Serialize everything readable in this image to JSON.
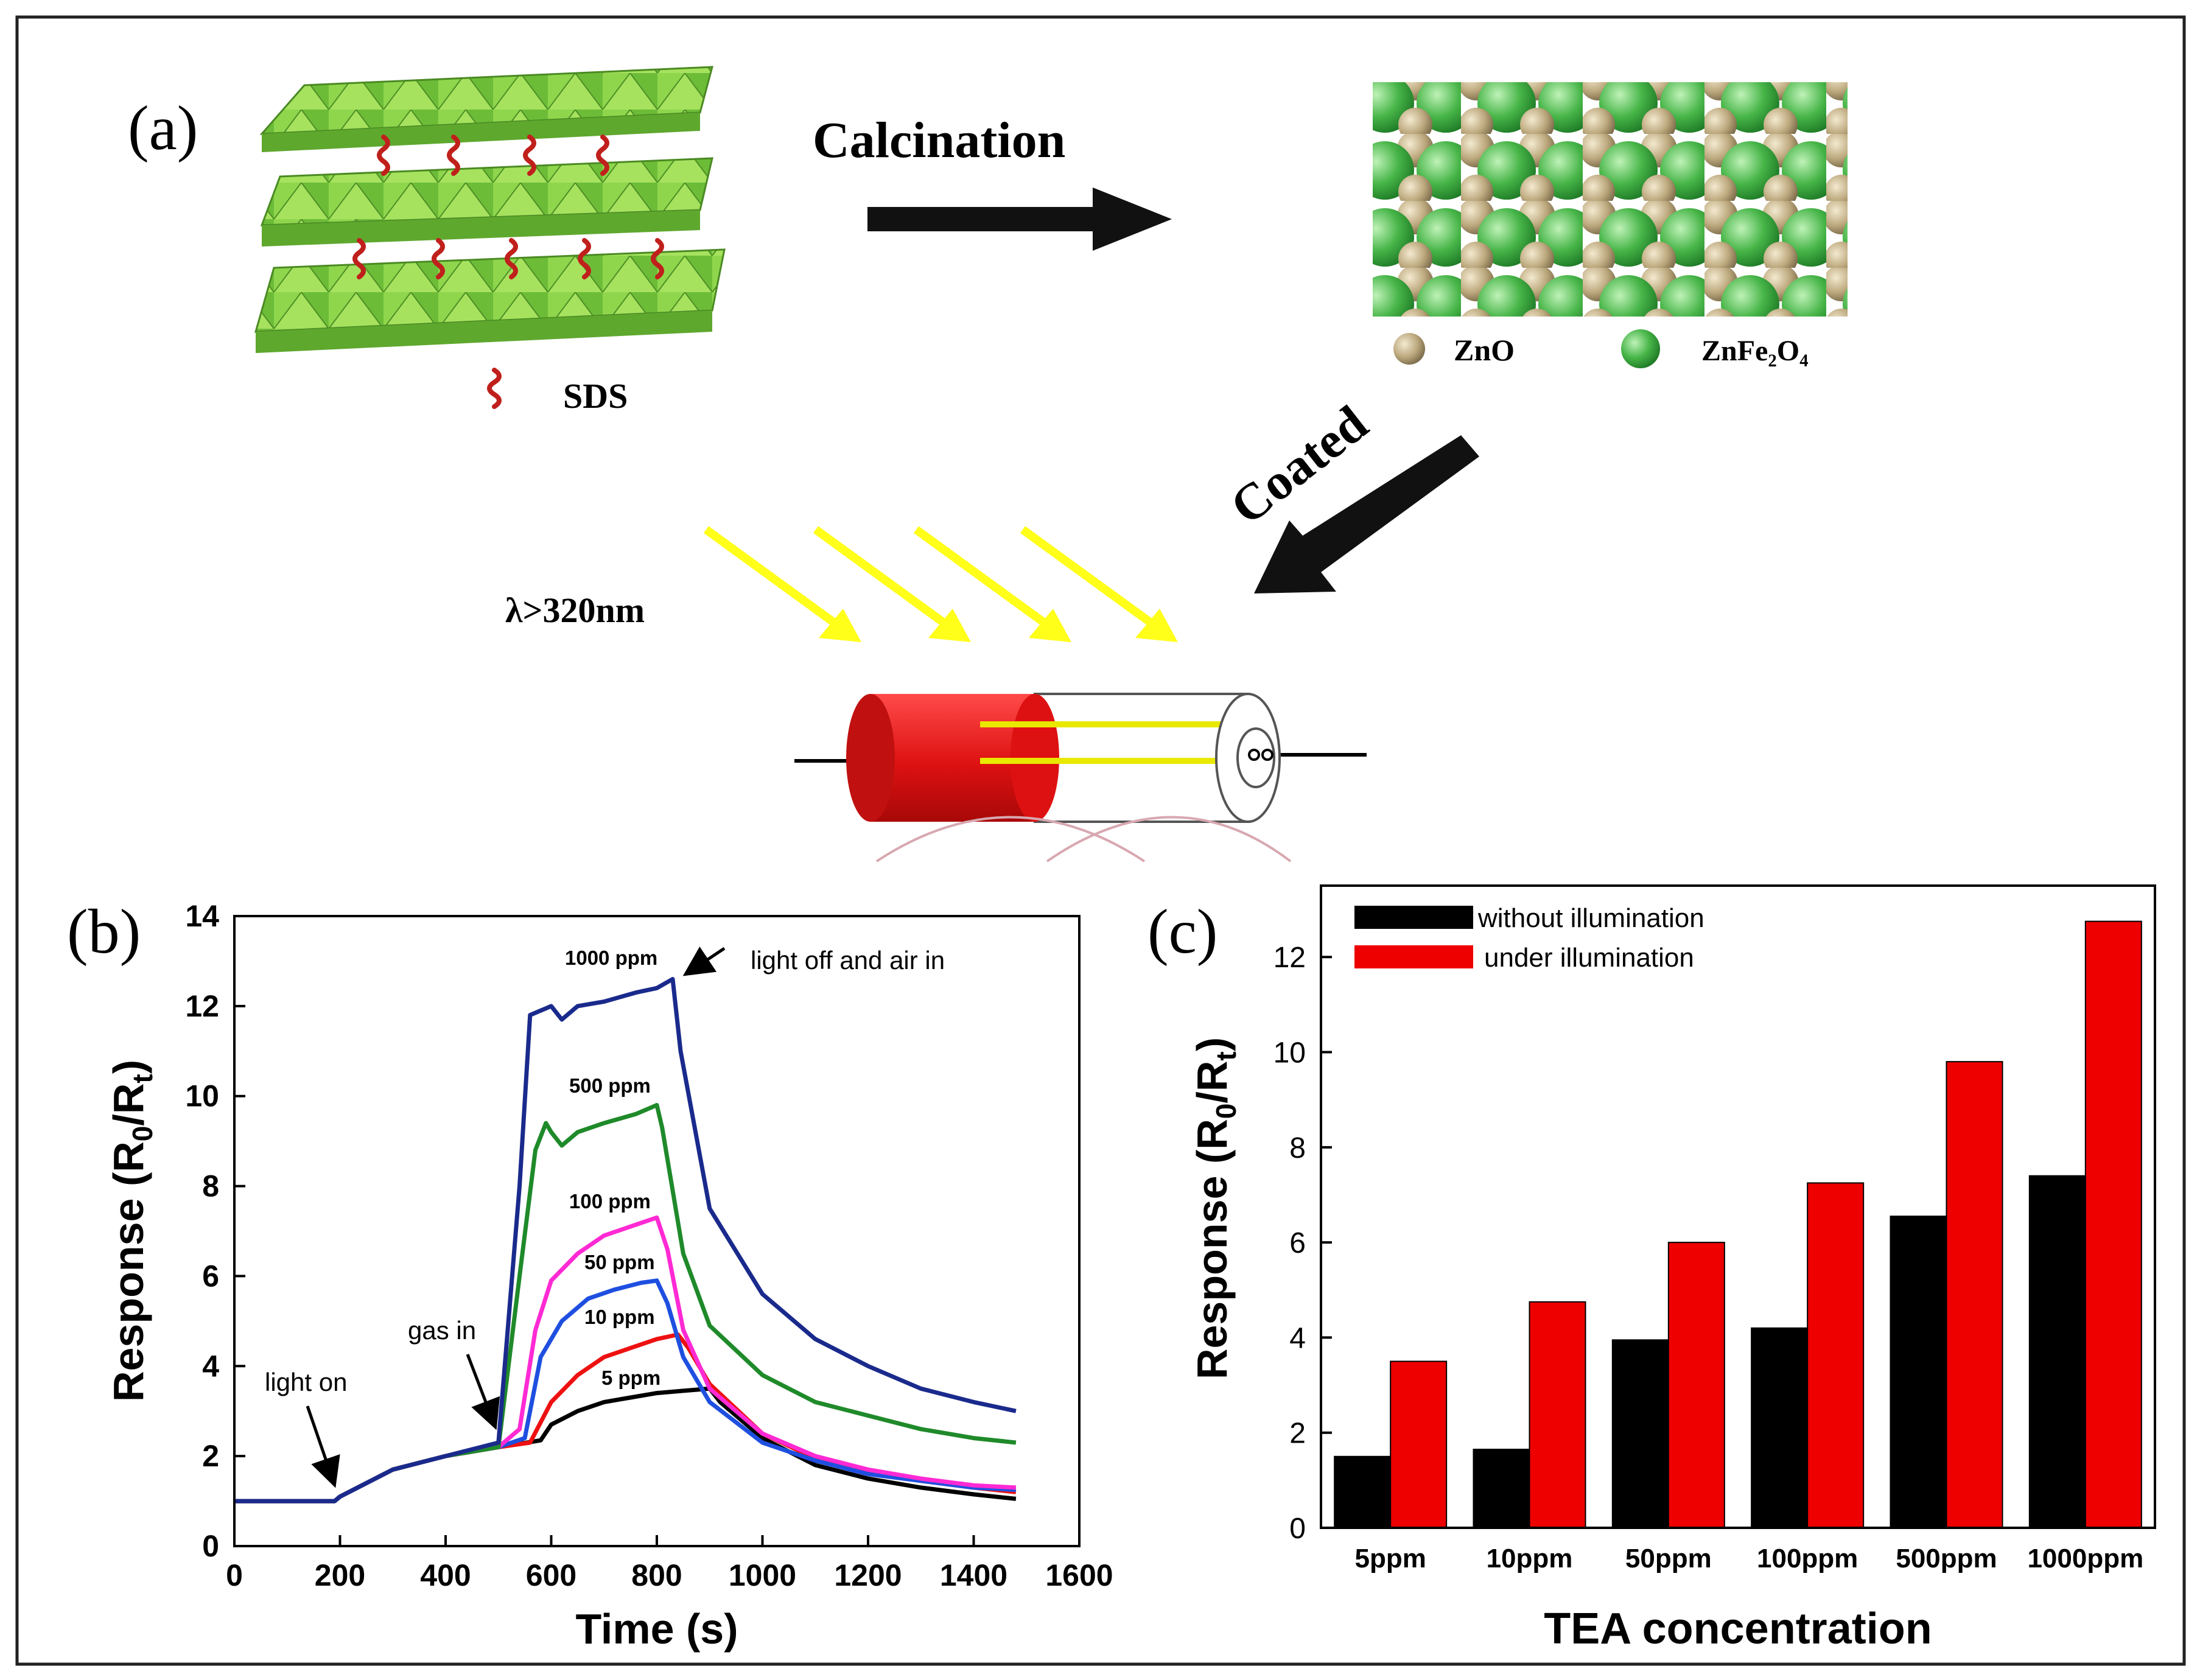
{
  "panel_a": {
    "label": "(a)",
    "calcination": "Calcination",
    "coated": "Coated",
    "sds": "SDS",
    "zno": "ZnO",
    "znfe2o4": "ZnFe₂O₄",
    "wavelength": "λ>320nm",
    "colors": {
      "plate": "#8fd64d",
      "plate_dark": "#5ea82e",
      "sds": "#c0201c",
      "zno": "#b9a47a",
      "znfe": "#49b54a",
      "light": "#ffff1a",
      "sensor": "#dd1c1c"
    }
  },
  "panel_b": {
    "label": "(b)",
    "annotations": {
      "light_on": "light on",
      "gas_in": "gas in",
      "light_off": "light off and air in"
    },
    "chart_data": {
      "type": "line",
      "xlabel": "Time (s)",
      "ylabel": "Response (R0/Rt)",
      "xlim": [
        0,
        1600
      ],
      "ylim": [
        0,
        14
      ],
      "xticks": [
        0,
        200,
        400,
        600,
        800,
        1000,
        1200,
        1400,
        1600
      ],
      "yticks": [
        0,
        2,
        4,
        6,
        8,
        10,
        12,
        14
      ],
      "series": [
        {
          "name": "1000 ppm",
          "color": "#1a2a8c",
          "x": [
            0,
            190,
            200,
            300,
            400,
            500,
            540,
            560,
            600,
            620,
            650,
            700,
            760,
            800,
            830,
            845,
            900,
            1000,
            1100,
            1200,
            1300,
            1400,
            1480
          ],
          "y": [
            1.0,
            1.0,
            1.1,
            1.7,
            2.0,
            2.3,
            8.0,
            11.8,
            12.0,
            11.7,
            12.0,
            12.1,
            12.3,
            12.4,
            12.6,
            11.0,
            7.5,
            5.6,
            4.6,
            4.0,
            3.5,
            3.2,
            3.0
          ]
        },
        {
          "name": "500 ppm",
          "color": "#1f8a2a",
          "x": [
            0,
            190,
            200,
            300,
            400,
            500,
            540,
            570,
            590,
            600,
            620,
            650,
            700,
            760,
            800,
            810,
            850,
            900,
            1000,
            1100,
            1200,
            1300,
            1400,
            1480
          ],
          "y": [
            1.0,
            1.0,
            1.1,
            1.7,
            2.0,
            2.2,
            6.0,
            8.8,
            9.4,
            9.2,
            8.9,
            9.2,
            9.4,
            9.6,
            9.8,
            9.3,
            6.5,
            4.9,
            3.8,
            3.2,
            2.9,
            2.6,
            2.4,
            2.3
          ]
        },
        {
          "name": "100 ppm",
          "color": "#ff2ad4",
          "x": [
            0,
            190,
            200,
            300,
            400,
            500,
            540,
            570,
            600,
            650,
            700,
            750,
            800,
            820,
            850,
            900,
            1000,
            1100,
            1200,
            1300,
            1400,
            1480
          ],
          "y": [
            1.0,
            1.0,
            1.1,
            1.7,
            2.0,
            2.2,
            2.6,
            4.8,
            5.9,
            6.5,
            6.9,
            7.1,
            7.3,
            6.6,
            4.8,
            3.5,
            2.5,
            2.0,
            1.7,
            1.5,
            1.35,
            1.3
          ]
        },
        {
          "name": "50 ppm",
          "color": "#1f4fe0",
          "x": [
            0,
            190,
            200,
            300,
            400,
            500,
            550,
            580,
            620,
            670,
            720,
            770,
            800,
            820,
            850,
            900,
            1000,
            1100,
            1200,
            1300,
            1400,
            1480
          ],
          "y": [
            1.0,
            1.0,
            1.1,
            1.7,
            2.0,
            2.2,
            2.4,
            4.2,
            5.0,
            5.5,
            5.7,
            5.85,
            5.9,
            5.4,
            4.2,
            3.2,
            2.3,
            1.9,
            1.6,
            1.45,
            1.3,
            1.25
          ]
        },
        {
          "name": "10 ppm",
          "color": "#ee1111",
          "x": [
            0,
            190,
            200,
            300,
            400,
            500,
            560,
            600,
            650,
            700,
            750,
            800,
            840,
            860,
            900,
            1000,
            1100,
            1200,
            1300,
            1400,
            1480
          ],
          "y": [
            1.0,
            1.0,
            1.1,
            1.7,
            2.0,
            2.2,
            2.3,
            3.2,
            3.8,
            4.2,
            4.4,
            4.6,
            4.7,
            4.4,
            3.6,
            2.5,
            1.95,
            1.65,
            1.45,
            1.3,
            1.2
          ]
        },
        {
          "name": "5 ppm",
          "color": "#000000",
          "x": [
            0,
            190,
            200,
            300,
            400,
            500,
            580,
            600,
            650,
            700,
            750,
            800,
            850,
            900,
            920,
            1000,
            1100,
            1200,
            1300,
            1400,
            1480
          ],
          "y": [
            1.0,
            1.0,
            1.1,
            1.7,
            2.0,
            2.2,
            2.35,
            2.7,
            3.0,
            3.2,
            3.3,
            3.4,
            3.45,
            3.5,
            3.2,
            2.4,
            1.8,
            1.5,
            1.3,
            1.15,
            1.05
          ]
        }
      ]
    }
  },
  "panel_c": {
    "label": "(c)",
    "chart_data": {
      "type": "bar",
      "xlabel": "TEA concentration",
      "ylabel": "Response (R0/Rt)",
      "ylim": [
        0,
        13.5
      ],
      "yticks": [
        0,
        2,
        4,
        6,
        8,
        10,
        12
      ],
      "categories": [
        "5ppm",
        "10ppm",
        "50ppm",
        "100ppm",
        "500ppm",
        "1000ppm"
      ],
      "series": [
        {
          "name": "without illumination",
          "color": "#000000",
          "values": [
            1.5,
            1.65,
            3.95,
            4.2,
            6.55,
            7.4
          ]
        },
        {
          "name": "under illumination",
          "color": "#ee0000",
          "values": [
            3.5,
            4.75,
            6.0,
            7.25,
            9.8,
            12.75
          ]
        }
      ]
    }
  }
}
